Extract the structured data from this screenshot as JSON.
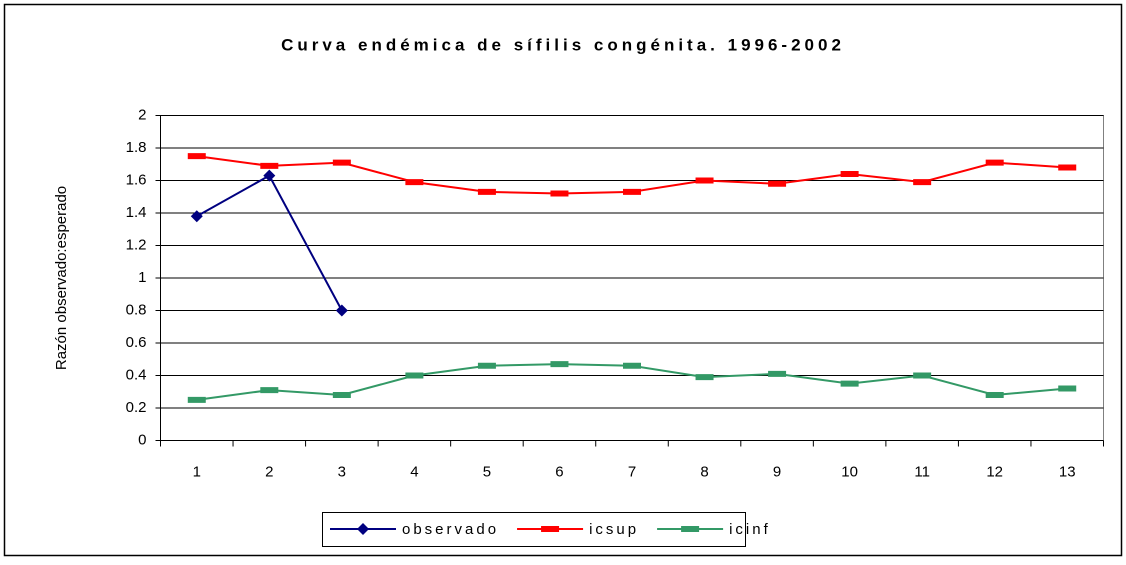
{
  "chart_data": {
    "type": "line",
    "title": "Curva endémica de sífilis congénita. 1996-2002",
    "ylabel": "Razón observado:esperado",
    "categories": [
      "1",
      "2",
      "3",
      "4",
      "5",
      "6",
      "7",
      "8",
      "9",
      "10",
      "11",
      "12",
      "13"
    ],
    "series": [
      {
        "name": "observado",
        "color": "#000080",
        "marker": "diamond",
        "values": [
          1.38,
          1.63,
          0.8,
          null,
          null,
          null,
          null,
          null,
          null,
          null,
          null,
          null,
          null
        ]
      },
      {
        "name": "icsup",
        "color": "#ff0000",
        "marker": "rect",
        "values": [
          1.75,
          1.69,
          1.71,
          1.59,
          1.53,
          1.52,
          1.53,
          1.6,
          1.58,
          1.64,
          1.59,
          1.71,
          1.68
        ]
      },
      {
        "name": "icinf",
        "color": "#339966",
        "marker": "rect",
        "values": [
          0.25,
          0.31,
          0.28,
          0.4,
          0.46,
          0.47,
          0.46,
          0.39,
          0.41,
          0.35,
          0.4,
          0.28,
          0.32
        ]
      }
    ],
    "ylim": [
      0,
      2
    ],
    "yticks": [
      0,
      0.2,
      0.4,
      0.6,
      0.8,
      1,
      1.2,
      1.4,
      1.6,
      1.8,
      2
    ],
    "grid": true,
    "legend": "bottom"
  }
}
